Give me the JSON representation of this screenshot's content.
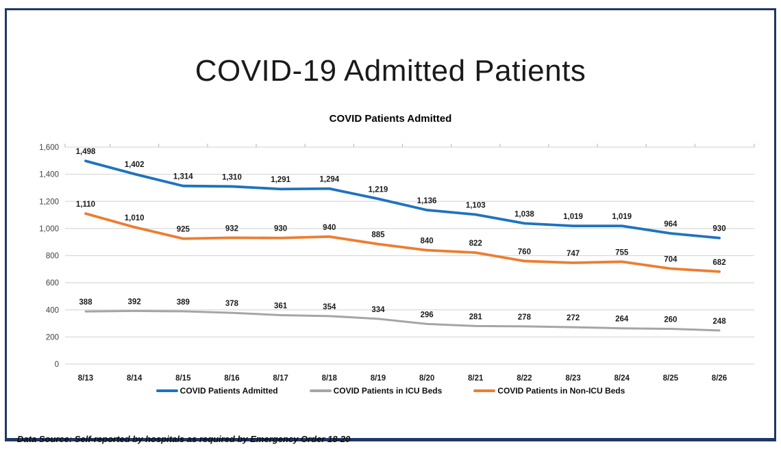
{
  "header": {
    "title": "COVID-19 Admitted Patients"
  },
  "chart_data": {
    "type": "line",
    "title": "COVID Patients Admitted",
    "categories": [
      "8/13",
      "8/14",
      "8/15",
      "8/16",
      "8/17",
      "8/18",
      "8/19",
      "8/20",
      "8/21",
      "8/22",
      "8/23",
      "8/24",
      "8/25",
      "8/26"
    ],
    "series": [
      {
        "name": "COVID Patients Admitted",
        "color": "#1E73BE",
        "values": [
          1498,
          1402,
          1314,
          1310,
          1291,
          1294,
          1219,
          1136,
          1103,
          1038,
          1019,
          1019,
          964,
          930
        ]
      },
      {
        "name": "COVID Patients in ICU Beds",
        "color": "#A5A5A5",
        "values": [
          388,
          392,
          389,
          378,
          361,
          354,
          334,
          296,
          281,
          278,
          272,
          264,
          260,
          248
        ]
      },
      {
        "name": "COVID Patients in Non-ICU Beds",
        "color": "#ED7D31",
        "values": [
          1110,
          1010,
          925,
          932,
          930,
          940,
          885,
          840,
          822,
          760,
          747,
          755,
          704,
          682
        ]
      }
    ],
    "xlabel": "",
    "ylabel": "",
    "ylim": [
      0,
      1600
    ],
    "ytick_step": 200,
    "grid": true,
    "legend_position": "bottom",
    "data_labels": true
  },
  "footer": {
    "source_note": "Data Source: Self-reported by hospitals as required by Emergency Order 18-20"
  },
  "colors": {
    "frame_border": "#1F3864",
    "gridline": "#D9D9D9",
    "tick": "#BFBFBF",
    "axis_text": "#404040",
    "label_text": "#1a1a1a"
  }
}
